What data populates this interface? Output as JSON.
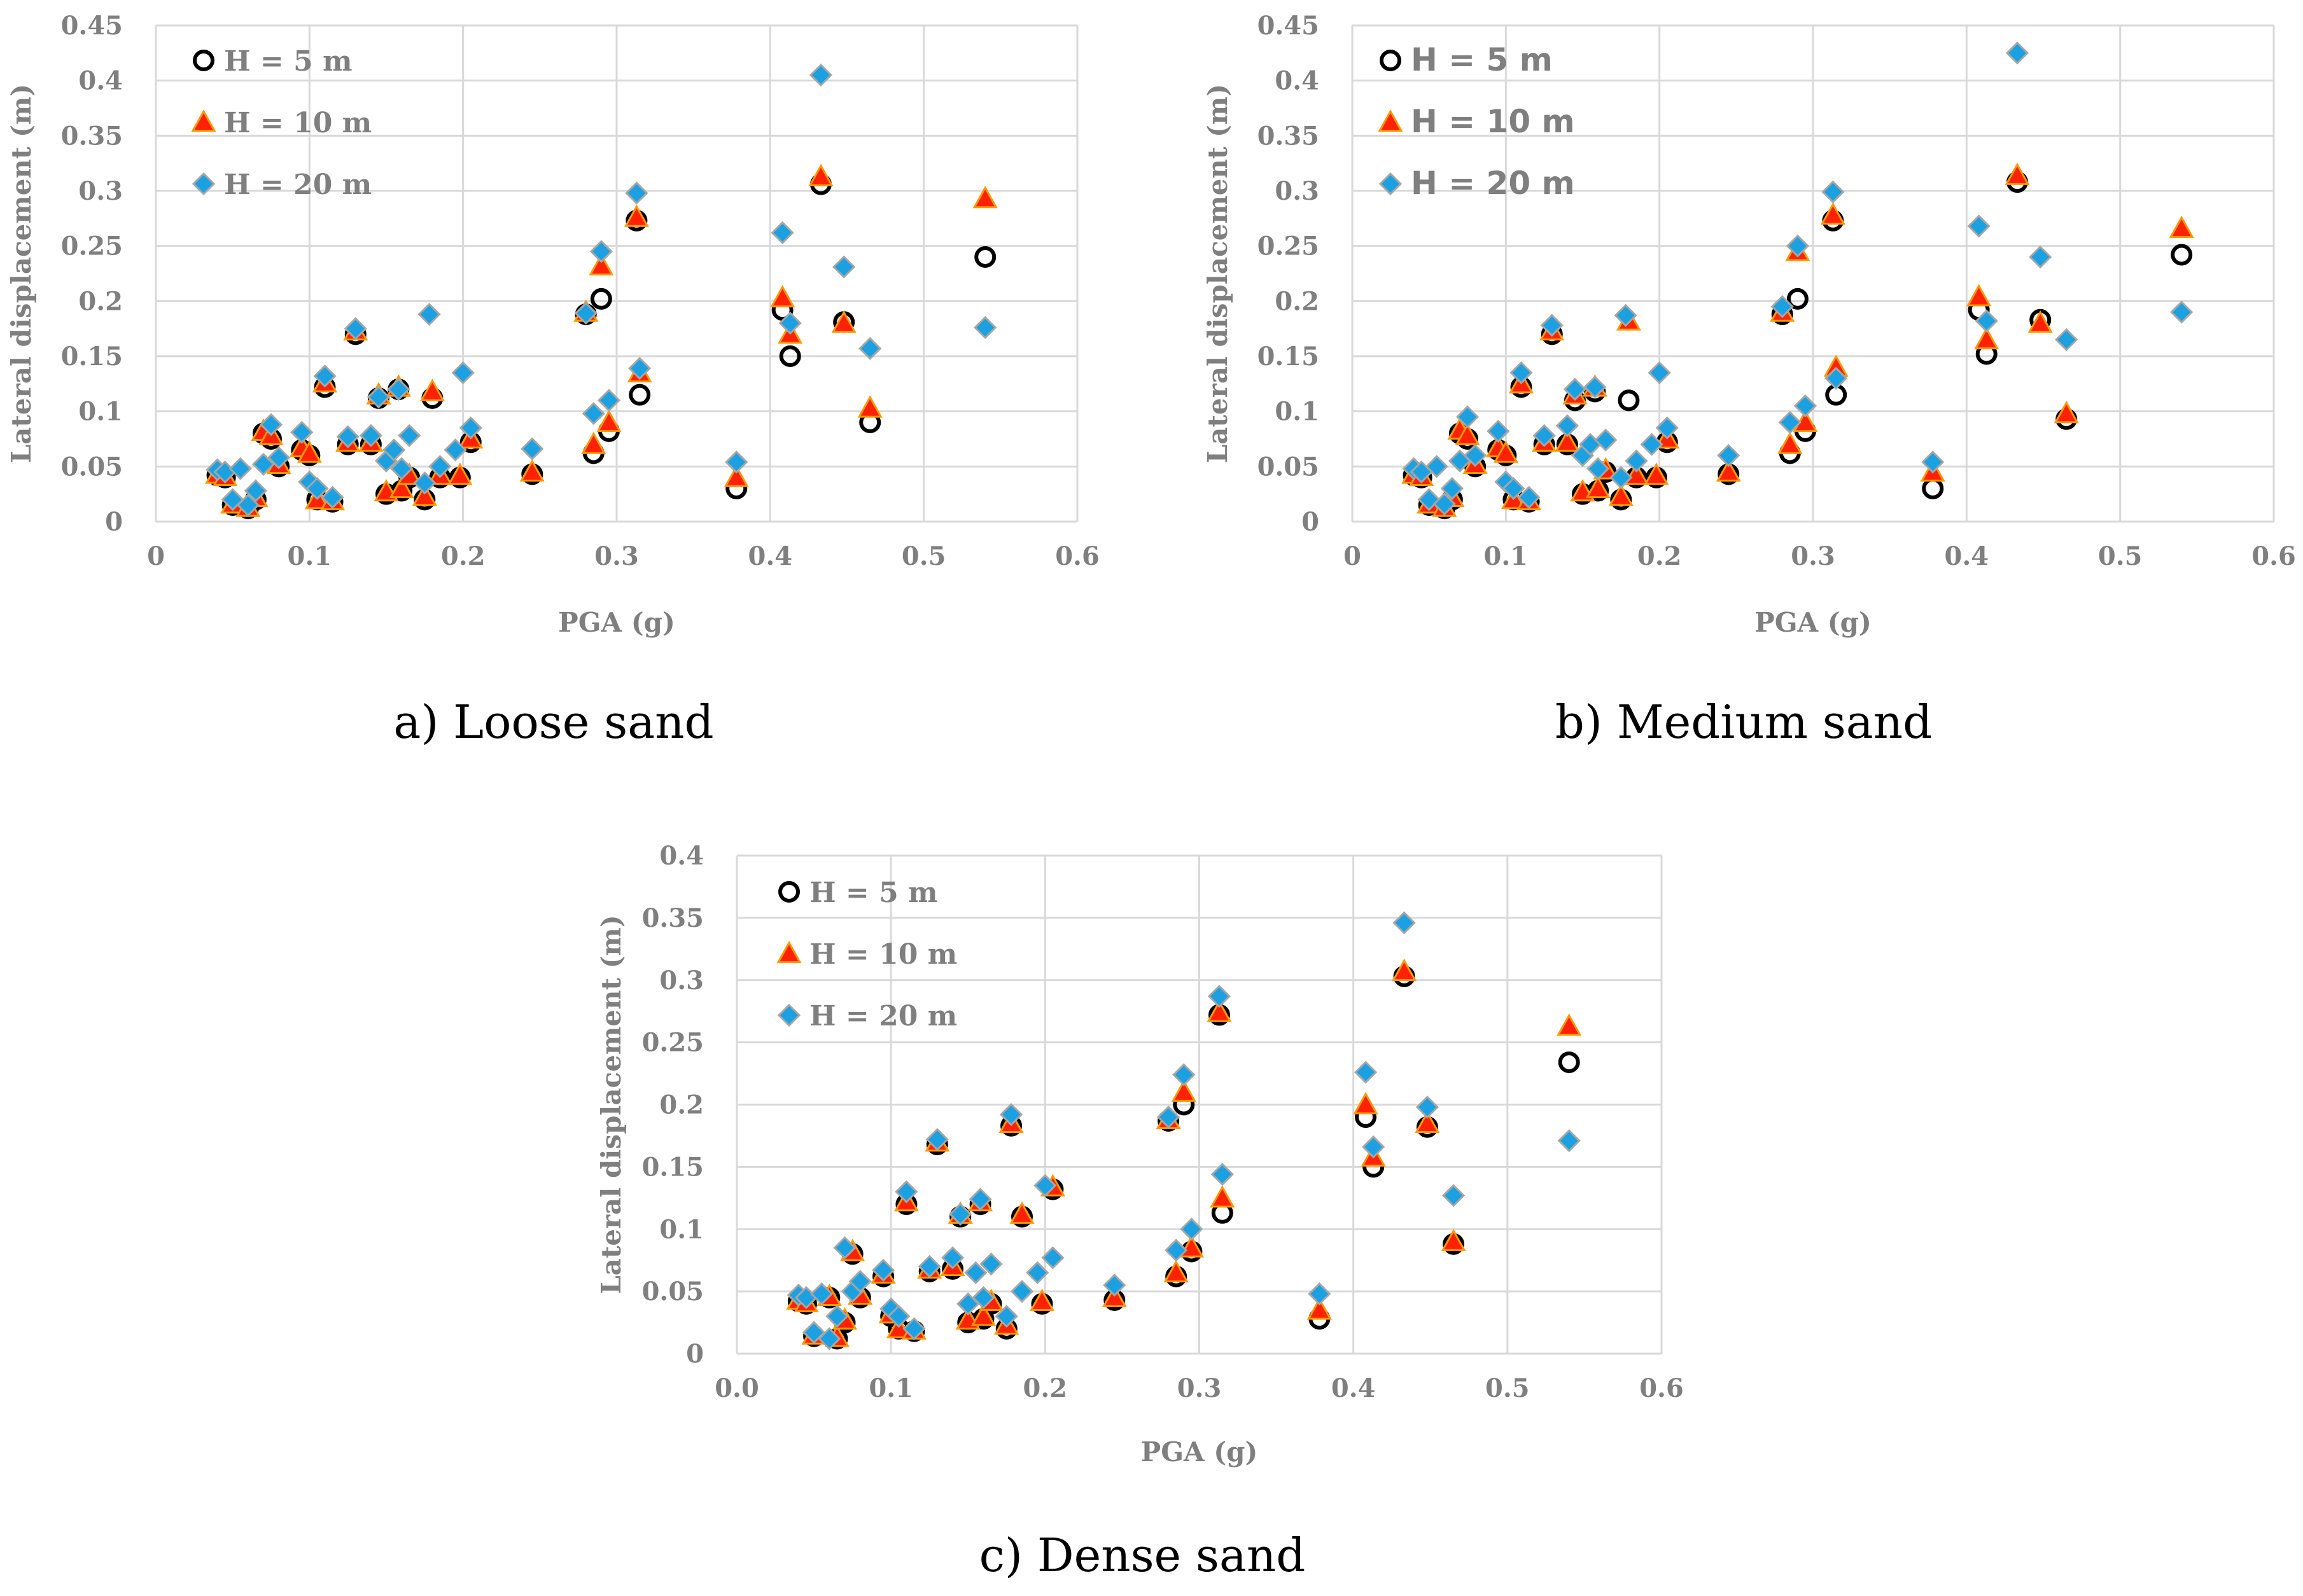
{
  "chart_data": [
    {
      "type": "scatter",
      "caption": "a) Loose sand",
      "xlabel": "PGA (g)",
      "ylabel": "Lateral displacement (m)",
      "xlim": [
        0,
        0.6
      ],
      "ylim": [
        0,
        0.45
      ],
      "xticks": [
        "0",
        "0.1",
        "0.2",
        "0.3",
        "0.4",
        "0.5",
        "0.6"
      ],
      "yticks": [
        "0",
        "0.05",
        "0.1",
        "0.15",
        "0.2",
        "0.25",
        "0.3",
        "0.35",
        "0.4",
        "0.45"
      ],
      "legend_style": "serif",
      "series": [
        {
          "name": "H = 5 m",
          "marker": "circle",
          "x": [
            0.04,
            0.045,
            0.05,
            0.06,
            0.065,
            0.07,
            0.075,
            0.08,
            0.095,
            0.1,
            0.105,
            0.11,
            0.115,
            0.125,
            0.13,
            0.14,
            0.145,
            0.15,
            0.158,
            0.16,
            0.165,
            0.175,
            0.18,
            0.185,
            0.198,
            0.205,
            0.245,
            0.28,
            0.285,
            0.29,
            0.295,
            0.313,
            0.315,
            0.378,
            0.408,
            0.413,
            0.433,
            0.448,
            0.465,
            0.54
          ],
          "y": [
            0.042,
            0.04,
            0.015,
            0.012,
            0.02,
            0.08,
            0.075,
            0.05,
            0.065,
            0.06,
            0.02,
            0.122,
            0.018,
            0.07,
            0.17,
            0.07,
            0.112,
            0.025,
            0.12,
            0.028,
            0.04,
            0.02,
            0.112,
            0.04,
            0.04,
            0.072,
            0.043,
            0.188,
            0.062,
            0.202,
            0.082,
            0.273,
            0.115,
            0.03,
            0.192,
            0.15,
            0.306,
            0.181,
            0.09,
            0.24
          ]
        },
        {
          "name": "H = 10 m",
          "marker": "triangle",
          "x": [
            0.04,
            0.045,
            0.05,
            0.06,
            0.065,
            0.07,
            0.075,
            0.08,
            0.095,
            0.1,
            0.105,
            0.11,
            0.115,
            0.125,
            0.13,
            0.14,
            0.145,
            0.15,
            0.158,
            0.16,
            0.165,
            0.175,
            0.18,
            0.185,
            0.198,
            0.205,
            0.245,
            0.28,
            0.285,
            0.29,
            0.295,
            0.313,
            0.315,
            0.378,
            0.408,
            0.413,
            0.433,
            0.448,
            0.465,
            0.54
          ],
          "y": [
            0.043,
            0.041,
            0.016,
            0.013,
            0.022,
            0.082,
            0.078,
            0.052,
            0.067,
            0.062,
            0.02,
            0.126,
            0.019,
            0.072,
            0.173,
            0.072,
            0.115,
            0.027,
            0.122,
            0.03,
            0.042,
            0.023,
            0.118,
            0.042,
            0.042,
            0.075,
            0.045,
            0.19,
            0.07,
            0.232,
            0.09,
            0.276,
            0.135,
            0.04,
            0.203,
            0.17,
            0.313,
            0.18,
            0.103,
            0.293
          ]
        },
        {
          "name": "H = 20 m",
          "marker": "diamond",
          "x": [
            0.04,
            0.045,
            0.05,
            0.055,
            0.06,
            0.065,
            0.07,
            0.075,
            0.08,
            0.095,
            0.1,
            0.105,
            0.11,
            0.115,
            0.125,
            0.13,
            0.14,
            0.145,
            0.15,
            0.155,
            0.158,
            0.16,
            0.165,
            0.175,
            0.178,
            0.185,
            0.195,
            0.2,
            0.205,
            0.245,
            0.28,
            0.285,
            0.29,
            0.295,
            0.313,
            0.315,
            0.378,
            0.408,
            0.413,
            0.433,
            0.448,
            0.465,
            0.54
          ],
          "y": [
            0.047,
            0.045,
            0.02,
            0.048,
            0.015,
            0.028,
            0.052,
            0.088,
            0.058,
            0.081,
            0.036,
            0.03,
            0.132,
            0.022,
            0.077,
            0.175,
            0.078,
            0.113,
            0.055,
            0.065,
            0.12,
            0.048,
            0.078,
            0.035,
            0.188,
            0.05,
            0.065,
            0.135,
            0.085,
            0.066,
            0.189,
            0.098,
            0.245,
            0.11,
            0.298,
            0.139,
            0.054,
            0.262,
            0.18,
            0.405,
            0.231,
            0.157,
            0.176
          ]
        }
      ]
    },
    {
      "type": "scatter",
      "caption": "b) Medium sand",
      "xlabel": "PGA (g)",
      "ylabel": "Lateral displacement (m)",
      "xlim": [
        0,
        0.6
      ],
      "ylim": [
        0,
        0.45
      ],
      "xticks": [
        "0",
        "0.1",
        "0.2",
        "0.3",
        "0.4",
        "0.5",
        "0.6"
      ],
      "yticks": [
        "0",
        "0.05",
        "0.1",
        "0.15",
        "0.2",
        "0.25",
        "0.3",
        "0.35",
        "0.4",
        "0.45"
      ],
      "legend_style": "sans",
      "series": [
        {
          "name": "H = 5 m",
          "marker": "circle",
          "x": [
            0.04,
            0.045,
            0.05,
            0.06,
            0.065,
            0.07,
            0.075,
            0.08,
            0.095,
            0.1,
            0.105,
            0.11,
            0.115,
            0.125,
            0.13,
            0.14,
            0.145,
            0.15,
            0.158,
            0.16,
            0.165,
            0.175,
            0.18,
            0.185,
            0.198,
            0.205,
            0.245,
            0.28,
            0.285,
            0.29,
            0.295,
            0.313,
            0.315,
            0.378,
            0.408,
            0.413,
            0.433,
            0.448,
            0.465,
            0.54
          ],
          "y": [
            0.042,
            0.04,
            0.015,
            0.012,
            0.02,
            0.08,
            0.075,
            0.05,
            0.065,
            0.06,
            0.02,
            0.122,
            0.018,
            0.07,
            0.17,
            0.07,
            0.11,
            0.025,
            0.118,
            0.028,
            0.045,
            0.02,
            0.11,
            0.04,
            0.04,
            0.072,
            0.043,
            0.188,
            0.062,
            0.202,
            0.082,
            0.273,
            0.115,
            0.03,
            0.192,
            0.152,
            0.308,
            0.183,
            0.093,
            0.242
          ]
        },
        {
          "name": "H = 10 m",
          "marker": "triangle",
          "x": [
            0.04,
            0.045,
            0.05,
            0.06,
            0.065,
            0.07,
            0.075,
            0.08,
            0.095,
            0.1,
            0.105,
            0.11,
            0.115,
            0.125,
            0.13,
            0.14,
            0.145,
            0.15,
            0.158,
            0.16,
            0.165,
            0.175,
            0.18,
            0.185,
            0.198,
            0.205,
            0.245,
            0.28,
            0.285,
            0.29,
            0.295,
            0.313,
            0.315,
            0.378,
            0.408,
            0.413,
            0.433,
            0.448,
            0.465,
            0.54
          ],
          "y": [
            0.043,
            0.041,
            0.016,
            0.013,
            0.022,
            0.083,
            0.078,
            0.052,
            0.067,
            0.062,
            0.02,
            0.125,
            0.019,
            0.072,
            0.173,
            0.072,
            0.115,
            0.027,
            0.122,
            0.03,
            0.047,
            0.023,
            0.182,
            0.042,
            0.042,
            0.075,
            0.045,
            0.19,
            0.07,
            0.245,
            0.09,
            0.278,
            0.14,
            0.045,
            0.204,
            0.165,
            0.314,
            0.18,
            0.098,
            0.266
          ]
        },
        {
          "name": "H = 20 m",
          "marker": "diamond",
          "x": [
            0.04,
            0.045,
            0.05,
            0.055,
            0.06,
            0.065,
            0.07,
            0.075,
            0.08,
            0.095,
            0.1,
            0.105,
            0.11,
            0.115,
            0.125,
            0.13,
            0.14,
            0.145,
            0.15,
            0.155,
            0.158,
            0.16,
            0.165,
            0.175,
            0.178,
            0.185,
            0.195,
            0.2,
            0.205,
            0.245,
            0.28,
            0.285,
            0.29,
            0.295,
            0.313,
            0.315,
            0.378,
            0.408,
            0.413,
            0.433,
            0.448,
            0.465,
            0.54
          ],
          "y": [
            0.048,
            0.045,
            0.02,
            0.05,
            0.016,
            0.03,
            0.055,
            0.095,
            0.06,
            0.082,
            0.036,
            0.03,
            0.135,
            0.022,
            0.078,
            0.178,
            0.087,
            0.12,
            0.06,
            0.07,
            0.122,
            0.048,
            0.074,
            0.04,
            0.187,
            0.055,
            0.07,
            0.135,
            0.085,
            0.06,
            0.195,
            0.09,
            0.25,
            0.105,
            0.299,
            0.13,
            0.054,
            0.268,
            0.182,
            0.425,
            0.24,
            0.165,
            0.19
          ]
        }
      ]
    },
    {
      "type": "scatter",
      "caption": "c) Dense sand",
      "xlabel": "PGA (g)",
      "ylabel": "Lateral displacement (m)",
      "xlim": [
        0,
        0.6
      ],
      "ylim": [
        0,
        0.4
      ],
      "xticks": [
        "0.0",
        "0.1",
        "0.2",
        "0.3",
        "0.4",
        "0.5",
        "0.6"
      ],
      "yticks": [
        "0",
        "0.05",
        "0.1",
        "0.15",
        "0.2",
        "0.25",
        "0.3",
        "0.35",
        "0.4"
      ],
      "legend_style": "serif",
      "series": [
        {
          "name": "H = 5 m",
          "marker": "circle",
          "x": [
            0.04,
            0.045,
            0.05,
            0.06,
            0.065,
            0.07,
            0.075,
            0.08,
            0.095,
            0.1,
            0.105,
            0.11,
            0.115,
            0.125,
            0.13,
            0.14,
            0.145,
            0.15,
            0.158,
            0.16,
            0.165,
            0.175,
            0.178,
            0.185,
            0.198,
            0.205,
            0.245,
            0.28,
            0.285,
            0.29,
            0.295,
            0.313,
            0.315,
            0.378,
            0.408,
            0.413,
            0.433,
            0.448,
            0.465,
            0.54
          ],
          "y": [
            0.042,
            0.04,
            0.014,
            0.045,
            0.012,
            0.025,
            0.08,
            0.045,
            0.062,
            0.03,
            0.02,
            0.12,
            0.018,
            0.066,
            0.168,
            0.068,
            0.11,
            0.025,
            0.12,
            0.028,
            0.04,
            0.02,
            0.183,
            0.11,
            0.04,
            0.132,
            0.043,
            0.187,
            0.062,
            0.2,
            0.082,
            0.272,
            0.113,
            0.028,
            0.19,
            0.15,
            0.303,
            0.182,
            0.088,
            0.234
          ]
        },
        {
          "name": "H = 10 m",
          "marker": "triangle",
          "x": [
            0.04,
            0.045,
            0.05,
            0.06,
            0.065,
            0.07,
            0.075,
            0.08,
            0.095,
            0.1,
            0.105,
            0.11,
            0.115,
            0.125,
            0.13,
            0.14,
            0.145,
            0.15,
            0.158,
            0.16,
            0.165,
            0.175,
            0.178,
            0.185,
            0.198,
            0.205,
            0.245,
            0.28,
            0.285,
            0.29,
            0.295,
            0.313,
            0.315,
            0.378,
            0.408,
            0.413,
            0.433,
            0.448,
            0.465,
            0.54
          ],
          "y": [
            0.043,
            0.041,
            0.015,
            0.046,
            0.013,
            0.027,
            0.082,
            0.047,
            0.064,
            0.032,
            0.02,
            0.122,
            0.019,
            0.068,
            0.17,
            0.07,
            0.112,
            0.027,
            0.122,
            0.03,
            0.042,
            0.023,
            0.185,
            0.112,
            0.042,
            0.134,
            0.045,
            0.188,
            0.065,
            0.21,
            0.085,
            0.274,
            0.125,
            0.035,
            0.2,
            0.158,
            0.307,
            0.185,
            0.09,
            0.263
          ]
        },
        {
          "name": "H = 20 m",
          "marker": "diamond",
          "x": [
            0.04,
            0.045,
            0.05,
            0.055,
            0.06,
            0.065,
            0.07,
            0.075,
            0.08,
            0.095,
            0.1,
            0.105,
            0.11,
            0.115,
            0.125,
            0.13,
            0.14,
            0.145,
            0.15,
            0.155,
            0.158,
            0.16,
            0.165,
            0.175,
            0.178,
            0.185,
            0.195,
            0.2,
            0.205,
            0.245,
            0.28,
            0.285,
            0.29,
            0.295,
            0.313,
            0.315,
            0.378,
            0.408,
            0.413,
            0.433,
            0.448,
            0.465,
            0.54
          ],
          "y": [
            0.047,
            0.045,
            0.017,
            0.048,
            0.012,
            0.03,
            0.085,
            0.05,
            0.058,
            0.067,
            0.036,
            0.03,
            0.13,
            0.02,
            0.07,
            0.172,
            0.077,
            0.112,
            0.04,
            0.065,
            0.124,
            0.045,
            0.072,
            0.03,
            0.192,
            0.05,
            0.065,
            0.135,
            0.077,
            0.055,
            0.19,
            0.083,
            0.224,
            0.1,
            0.287,
            0.144,
            0.048,
            0.226,
            0.166,
            0.346,
            0.198,
            0.127,
            0.171
          ]
        }
      ]
    }
  ],
  "colors": {
    "circle_stroke": "#000000",
    "triangle_fill": "#ff2200",
    "triangle_stroke": "#ff9900",
    "diamond_fill": "#1ba1e2",
    "diamond_stroke": "#a6a6a6",
    "grid": "#d9d9d9",
    "text": "#7f7f7f"
  }
}
